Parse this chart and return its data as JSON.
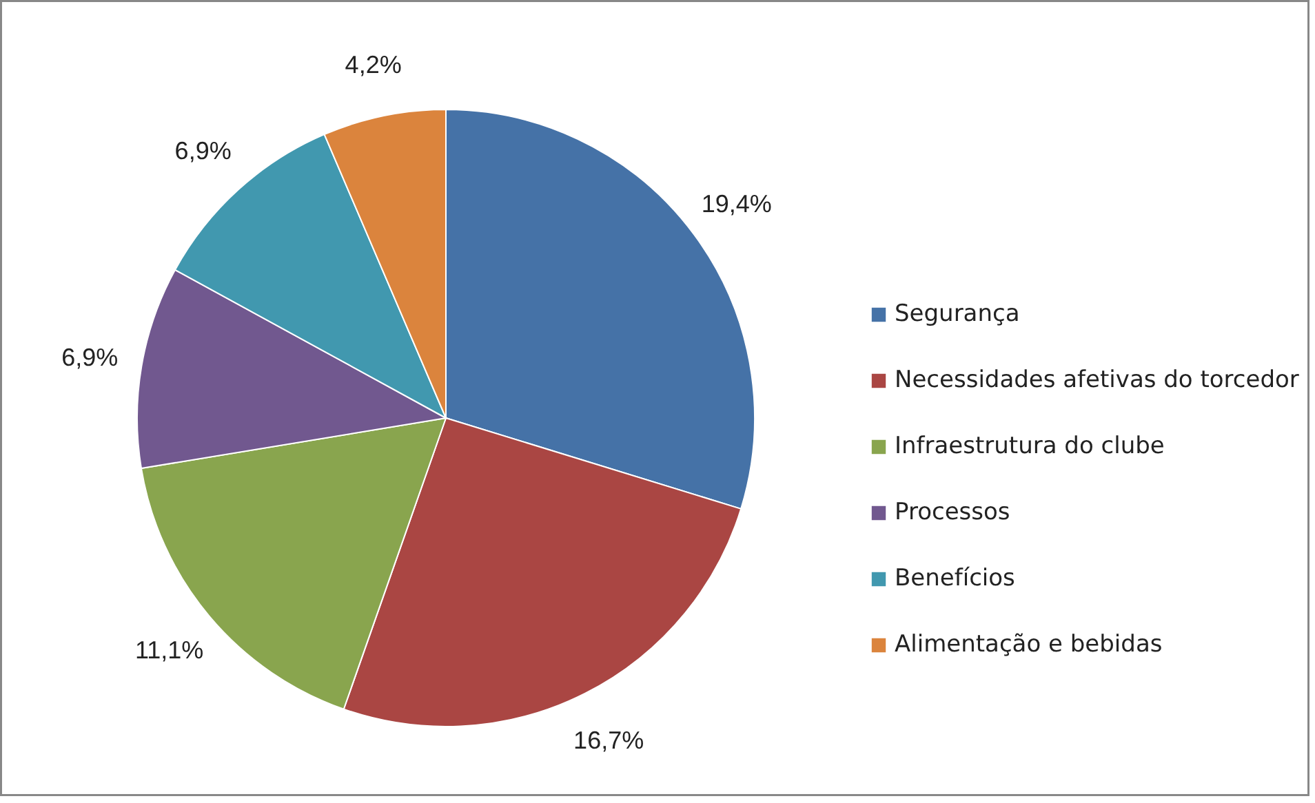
{
  "chart_data": {
    "type": "pie",
    "categories": [
      "Segurança",
      "Necessidades afetivas do torcedor",
      "Infraestrutura do clube",
      "Processos",
      "Benefícios",
      "Alimentação e bebidas"
    ],
    "values": [
      19.4,
      16.7,
      11.1,
      6.9,
      6.9,
      4.2
    ],
    "colors": [
      "#4572a7",
      "#aa4643",
      "#89a54e",
      "#71588f",
      "#4198af",
      "#db843d"
    ],
    "value_labels": [
      "19,4%",
      "16,7%",
      "11,1%",
      "6,9%",
      "6,9%",
      "4,2%"
    ],
    "legend": "right"
  }
}
